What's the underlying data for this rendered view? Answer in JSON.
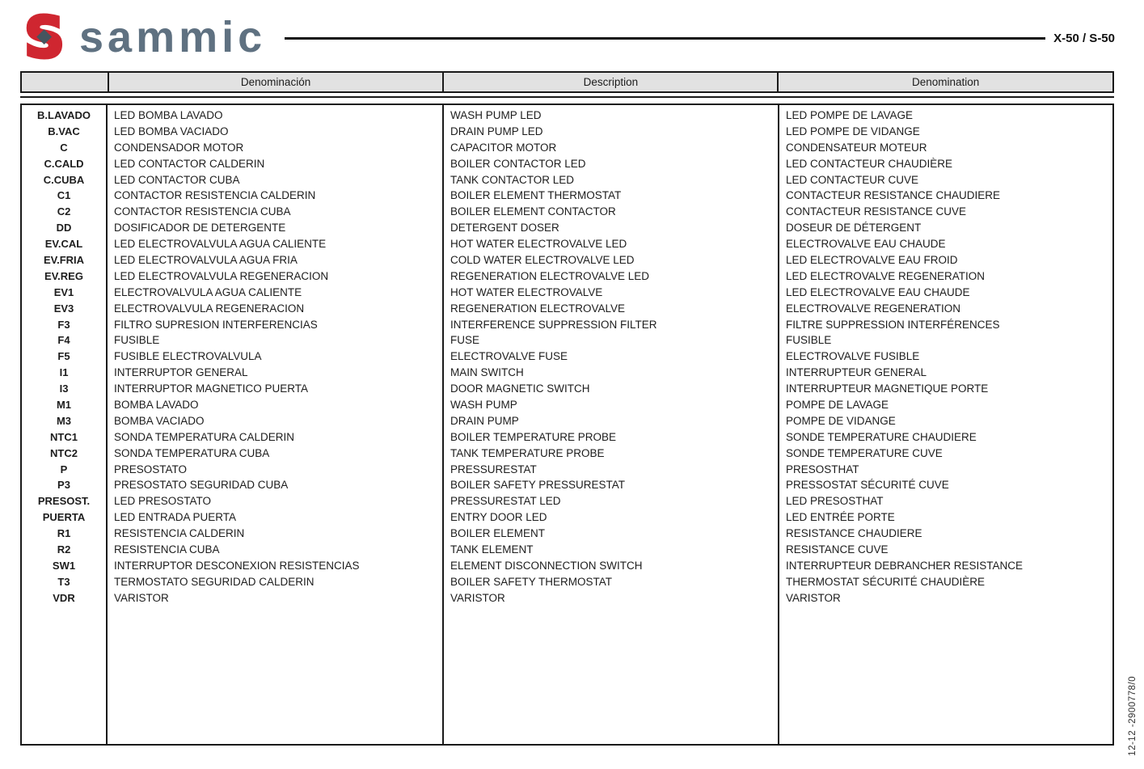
{
  "brand": {
    "name": "sammic",
    "model": "X-50 / S-50"
  },
  "doc_ref": "12-12 -2900778/0",
  "colors": {
    "logo_red": "#cf2630",
    "logo_slate": "#5f7181",
    "logo_diamond": "#46555f",
    "table_header_fill": "#e2e2e2",
    "table_border": "#1a1a1a"
  },
  "table": {
    "headers": {
      "code": "",
      "es": "Denominación",
      "en": "Description",
      "fr": "Denomination"
    },
    "rows": [
      {
        "code": "B.LAVADO",
        "es": "LED BOMBA LAVADO",
        "en": "WASH PUMP LED",
        "fr": "LED POMPE DE LAVAGE"
      },
      {
        "code": "B.VAC",
        "es": "LED BOMBA VACIADO",
        "en": "DRAIN PUMP LED",
        "fr": "LED POMPE DE VIDANGE"
      },
      {
        "code": "C",
        "es": "CONDENSADOR MOTOR",
        "en": "CAPACITOR MOTOR",
        "fr": "CONDENSATEUR MOTEUR"
      },
      {
        "code": "C.CALD",
        "es": "LED CONTACTOR CALDERIN",
        "en": "BOILER CONTACTOR LED",
        "fr": "LED CONTACTEUR CHAUDIÈRE"
      },
      {
        "code": "C.CUBA",
        "es": "LED CONTACTOR CUBA",
        "en": "TANK CONTACTOR LED",
        "fr": "LED CONTACTEUR CUVE"
      },
      {
        "code": "C1",
        "es": "CONTACTOR RESISTENCIA CALDERIN",
        "en": "BOILER ELEMENT THERMOSTAT",
        "fr": "CONTACTEUR RESISTANCE CHAUDIERE"
      },
      {
        "code": "C2",
        "es": "CONTACTOR RESISTENCIA CUBA",
        "en": "BOILER ELEMENT CONTACTOR",
        "fr": "CONTACTEUR RESISTANCE CUVE"
      },
      {
        "code": "DD",
        "es": "DOSIFICADOR DE DETERGENTE",
        "en": "DETERGENT DOSER",
        "fr": "DOSEUR DE DÉTERGENT"
      },
      {
        "code": "EV.CAL",
        "es": "LED ELECTROVALVULA AGUA CALIENTE",
        "en": "HOT WATER ELECTROVALVE LED",
        "fr": "ELECTROVALVE EAU CHAUDE"
      },
      {
        "code": "EV.FRIA",
        "es": "LED ELECTROVALVULA AGUA FRIA",
        "en": "COLD WATER ELECTROVALVE LED",
        "fr": "LED ELECTROVALVE EAU FROID"
      },
      {
        "code": "EV.REG",
        "es": "LED ELECTROVALVULA REGENERACION",
        "en": "REGENERATION ELECTROVALVE LED",
        "fr": "LED ELECTROVALVE REGENERATION"
      },
      {
        "code": "EV1",
        "es": "ELECTROVALVULA AGUA CALIENTE",
        "en": "HOT WATER ELECTROVALVE",
        "fr": "LED ELECTROVALVE EAU CHAUDE"
      },
      {
        "code": "EV3",
        "es": "ELECTROVALVULA REGENERACION",
        "en": "REGENERATION ELECTROVALVE",
        "fr": "ELECTROVALVE REGENERATION"
      },
      {
        "code": "F3",
        "es": "FILTRO SUPRESION INTERFERENCIAS",
        "en": "INTERFERENCE SUPPRESSION FILTER",
        "fr": "FILTRE SUPPRESSION INTERFÉRENCES"
      },
      {
        "code": "F4",
        "es": "FUSIBLE",
        "en": "FUSE",
        "fr": "FUSIBLE"
      },
      {
        "code": "F5",
        "es": "FUSIBLE ELECTROVALVULA",
        "en": "ELECTROVALVE FUSE",
        "fr": "ELECTROVALVE FUSIBLE"
      },
      {
        "code": "I1",
        "es": "INTERRUPTOR GENERAL",
        "en": "MAIN SWITCH",
        "fr": "INTERRUPTEUR GENERAL"
      },
      {
        "code": "I3",
        "es": "INTERRUPTOR MAGNETICO PUERTA",
        "en": "DOOR MAGNETIC SWITCH",
        "fr": "INTERRUPTEUR MAGNETIQUE PORTE"
      },
      {
        "code": "M1",
        "es": "BOMBA LAVADO",
        "en": "WASH PUMP",
        "fr": "POMPE DE LAVAGE"
      },
      {
        "code": "M3",
        "es": "BOMBA VACIADO",
        "en": "DRAIN PUMP",
        "fr": "POMPE DE VIDANGE"
      },
      {
        "code": "NTC1",
        "es": "SONDA TEMPERATURA CALDERIN",
        "en": "BOILER TEMPERATURE PROBE",
        "fr": "SONDE TEMPERATURE CHAUDIERE"
      },
      {
        "code": "NTC2",
        "es": "SONDA TEMPERATURA CUBA",
        "en": "TANK TEMPERATURE PROBE",
        "fr": "SONDE TEMPERATURE CUVE"
      },
      {
        "code": "P",
        "es": "PRESOSTATO",
        "en": "PRESSURESTAT",
        "fr": "PRESOSTHAT"
      },
      {
        "code": "P3",
        "es": "PRESOSTATO SEGURIDAD CUBA",
        "en": "BOILER SAFETY PRESSURESTAT",
        "fr": "PRESSOSTAT SÉCURITÉ CUVE"
      },
      {
        "code": "PRESOST.",
        "es": "LED PRESOSTATO",
        "en": "PRESSURESTAT LED",
        "fr": "LED PRESOSTHAT"
      },
      {
        "code": "PUERTA",
        "es": "LED ENTRADA PUERTA",
        "en": "ENTRY DOOR LED",
        "fr": "LED ENTRÉE PORTE"
      },
      {
        "code": "R1",
        "es": "RESISTENCIA CALDERIN",
        "en": "BOILER ELEMENT",
        "fr": "RESISTANCE CHAUDIERE"
      },
      {
        "code": "R2",
        "es": "RESISTENCIA CUBA",
        "en": "TANK ELEMENT",
        "fr": "RESISTANCE CUVE"
      },
      {
        "code": "SW1",
        "es": "INTERRUPTOR DESCONEXION RESISTENCIAS",
        "en": "ELEMENT DISCONNECTION SWITCH",
        "fr": "INTERRUPTEUR DEBRANCHER RESISTANCE"
      },
      {
        "code": "T3",
        "es": "TERMOSTATO SEGURIDAD CALDERIN",
        "en": "BOILER SAFETY THERMOSTAT",
        "fr": "THERMOSTAT SÉCURITÉ CHAUDIÈRE"
      },
      {
        "code": "VDR",
        "es": "VARISTOR",
        "en": "VARISTOR",
        "fr": "VARISTOR"
      }
    ]
  }
}
